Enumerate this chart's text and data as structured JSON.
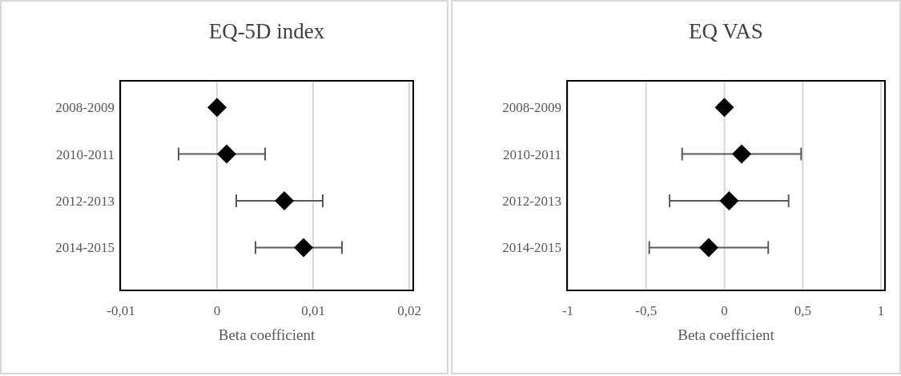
{
  "chart_data": [
    {
      "type": "scatter",
      "title": "EQ-5D index",
      "xlabel": "Beta coefficient",
      "orientation": "horizontal",
      "categories": [
        "2008-2009",
        "2010-2011",
        "2012-2013",
        "2014-2015"
      ],
      "values": [
        0,
        0.001,
        0.007,
        0.009
      ],
      "errors": [
        null,
        [
          -0.004,
          0.005
        ],
        [
          0.002,
          0.011
        ],
        [
          0.004,
          0.013
        ]
      ],
      "color": "#000000",
      "marker": "diamond",
      "grid": "x",
      "xlim": [
        -0.01,
        0.02
      ],
      "xticks": [
        {
          "value": -0.01,
          "label": "-0,01"
        },
        0,
        {
          "value": 0.01,
          "label": "0,01"
        },
        {
          "value": 0.02,
          "label": "0,02"
        }
      ]
    },
    {
      "type": "scatter",
      "title": "EQ VAS",
      "xlabel": "Beta coefficient",
      "orientation": "horizontal",
      "categories": [
        "2008-2009",
        "2010-2011",
        "2012-2013",
        "2014-2015"
      ],
      "values": [
        0,
        0.11,
        0.03,
        -0.1
      ],
      "errors": [
        null,
        [
          -0.27,
          0.49
        ],
        [
          -0.35,
          0.41
        ],
        [
          -0.48,
          0.28
        ]
      ],
      "color": "#000000",
      "marker": "diamond",
      "grid": "x",
      "xlim": [
        -1,
        1
      ],
      "xticks": [
        -1,
        {
          "value": -0.5,
          "label": "-0,5"
        },
        0,
        {
          "value": 0.5,
          "label": "0,5"
        },
        1
      ]
    }
  ]
}
